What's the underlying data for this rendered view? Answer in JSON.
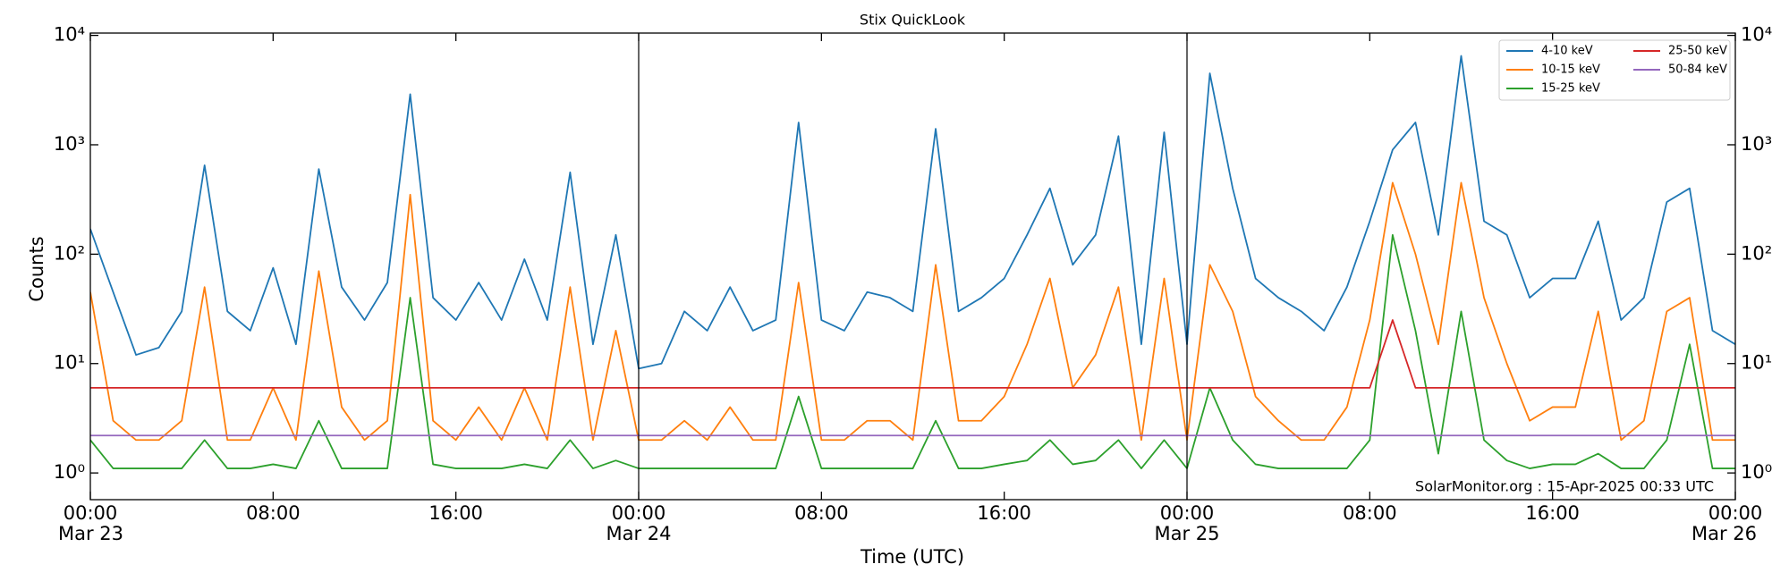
{
  "chart_data": {
    "type": "line",
    "title": "Stix QuickLook",
    "x_label": "Time (UTC)",
    "y_label": "Counts",
    "annotation": "SolarMonitor.org : 15-Apr-2025 00:33 UTC",
    "log_y": true,
    "legend": "upper right",
    "xlim": [
      "Mar 23 00:00",
      "Mar 26 00:00"
    ],
    "ylim": [
      0.57,
      10500
    ],
    "xticks": [
      {
        "value": "Mar 23 00:00",
        "label": "00:00",
        "sublabel": "Mar 23"
      },
      {
        "value": "Mar 23 08:00",
        "label": "08:00"
      },
      {
        "value": "Mar 23 16:00",
        "label": "16:00"
      },
      {
        "value": "Mar 24 00:00",
        "label": "00:00",
        "sublabel": "Mar 24"
      },
      {
        "value": "Mar 24 08:00",
        "label": "08:00"
      },
      {
        "value": "Mar 24 16:00",
        "label": "16:00"
      },
      {
        "value": "Mar 25 00:00",
        "label": "00:00",
        "sublabel": "Mar 25"
      },
      {
        "value": "Mar 25 08:00",
        "label": "08:00"
      },
      {
        "value": "Mar 25 16:00",
        "label": "16:00"
      },
      {
        "value": "Mar 26 00:00",
        "label": "00:00",
        "sublabel": "Mar 26"
      }
    ],
    "yticks": [
      {
        "value": 1,
        "label": "10⁰"
      },
      {
        "value": 10,
        "label": "10¹"
      },
      {
        "value": 100,
        "label": "10²"
      },
      {
        "value": 1000,
        "label": "10³"
      },
      {
        "value": 10000,
        "label": "10⁴"
      }
    ],
    "vlines": [
      "Mar 24 00:00",
      "Mar 25 00:00"
    ],
    "x": [
      "Mar 23 00:00",
      "Mar 23 01:00",
      "Mar 23 02:00",
      "Mar 23 03:00",
      "Mar 23 04:00",
      "Mar 23 05:00",
      "Mar 23 06:00",
      "Mar 23 07:00",
      "Mar 23 08:00",
      "Mar 23 09:00",
      "Mar 23 10:00",
      "Mar 23 11:00",
      "Mar 23 12:00",
      "Mar 23 13:00",
      "Mar 23 14:00",
      "Mar 23 15:00",
      "Mar 23 16:00",
      "Mar 23 17:00",
      "Mar 23 18:00",
      "Mar 23 19:00",
      "Mar 23 20:00",
      "Mar 23 21:00",
      "Mar 23 22:00",
      "Mar 23 23:00",
      "Mar 24 00:00",
      "Mar 24 01:00",
      "Mar 24 02:00",
      "Mar 24 03:00",
      "Mar 24 04:00",
      "Mar 24 05:00",
      "Mar 24 06:00",
      "Mar 24 07:00",
      "Mar 24 08:00",
      "Mar 24 09:00",
      "Mar 24 10:00",
      "Mar 24 11:00",
      "Mar 24 12:00",
      "Mar 24 13:00",
      "Mar 24 14:00",
      "Mar 24 15:00",
      "Mar 24 16:00",
      "Mar 24 17:00",
      "Mar 24 18:00",
      "Mar 24 19:00",
      "Mar 24 20:00",
      "Mar 24 21:00",
      "Mar 24 22:00",
      "Mar 24 23:00",
      "Mar 25 00:00",
      "Mar 25 01:00",
      "Mar 25 02:00",
      "Mar 25 03:00",
      "Mar 25 04:00",
      "Mar 25 05:00",
      "Mar 25 06:00",
      "Mar 25 07:00",
      "Mar 25 08:00",
      "Mar 25 09:00",
      "Mar 25 10:00",
      "Mar 25 11:00",
      "Mar 25 12:00",
      "Mar 25 13:00",
      "Mar 25 14:00",
      "Mar 25 15:00",
      "Mar 25 16:00",
      "Mar 25 17:00",
      "Mar 25 18:00",
      "Mar 25 19:00",
      "Mar 25 20:00",
      "Mar 25 21:00",
      "Mar 25 22:00",
      "Mar 25 23:00",
      "Mar 26 00:00"
    ],
    "series": [
      {
        "name": "4-10 keV",
        "color": "#1f77b4",
        "values": [
          170,
          45,
          12,
          14,
          30,
          650,
          30,
          20,
          75,
          15,
          600,
          50,
          25,
          55,
          2900,
          40,
          25,
          55,
          25,
          90,
          25,
          560,
          15,
          150,
          9,
          10,
          30,
          20,
          50,
          20,
          25,
          1600,
          25,
          20,
          45,
          40,
          30,
          1400,
          30,
          40,
          60,
          150,
          400,
          80,
          150,
          1200,
          15,
          1300,
          15,
          4500,
          400,
          60,
          40,
          30,
          20,
          50,
          200,
          900,
          1600,
          150,
          6500,
          200,
          150,
          40,
          60,
          60,
          200,
          25,
          40,
          300,
          400,
          20,
          15
        ]
      },
      {
        "name": "10-15 keV",
        "color": "#ff7f0e",
        "values": [
          45,
          3,
          2,
          2,
          3,
          50,
          2,
          2,
          6,
          2,
          70,
          4,
          2,
          3,
          350,
          3,
          2,
          4,
          2,
          6,
          2,
          50,
          2,
          20,
          2,
          2,
          3,
          2,
          4,
          2,
          2,
          55,
          2,
          2,
          3,
          3,
          2,
          80,
          3,
          3,
          5,
          15,
          60,
          6,
          12,
          50,
          2,
          60,
          2,
          80,
          30,
          5,
          3,
          2,
          2,
          4,
          25,
          450,
          100,
          15,
          450,
          40,
          10,
          3,
          4,
          4,
          30,
          2,
          3,
          30,
          40,
          2,
          2
        ]
      },
      {
        "name": "15-25 keV",
        "color": "#2ca02c",
        "values": [
          2,
          1.1,
          1.1,
          1.1,
          1.1,
          2,
          1.1,
          1.1,
          1.2,
          1.1,
          3,
          1.1,
          1.1,
          1.1,
          40,
          1.2,
          1.1,
          1.1,
          1.1,
          1.2,
          1.1,
          2,
          1.1,
          1.3,
          1.1,
          1.1,
          1.1,
          1.1,
          1.1,
          1.1,
          1.1,
          5,
          1.1,
          1.1,
          1.1,
          1.1,
          1.1,
          3,
          1.1,
          1.1,
          1.2,
          1.3,
          2,
          1.2,
          1.3,
          2,
          1.1,
          2,
          1.1,
          6,
          2,
          1.2,
          1.1,
          1.1,
          1.1,
          1.1,
          2,
          150,
          20,
          1.5,
          30,
          2,
          1.3,
          1.1,
          1.2,
          1.2,
          1.5,
          1.1,
          1.1,
          2,
          15,
          1.1,
          1.1
        ]
      },
      {
        "name": "25-50 keV",
        "color": "#d62728",
        "values": [
          6,
          6,
          6,
          6,
          6,
          6,
          6,
          6,
          6,
          6,
          6,
          6,
          6,
          6,
          6,
          6,
          6,
          6,
          6,
          6,
          6,
          6,
          6,
          6,
          6,
          6,
          6,
          6,
          6,
          6,
          6,
          6,
          6,
          6,
          6,
          6,
          6,
          6,
          6,
          6,
          6,
          6,
          6,
          6,
          6,
          6,
          6,
          6,
          6,
          6,
          6,
          6,
          6,
          6,
          6,
          6,
          6,
          25,
          6,
          6,
          6,
          6,
          6,
          6,
          6,
          6,
          6,
          6,
          6,
          6,
          6,
          6,
          6
        ]
      },
      {
        "name": "50-84 keV",
        "color": "#9467bd",
        "values": [
          2.2,
          2.2,
          2.2,
          2.2,
          2.2,
          2.2,
          2.2,
          2.2,
          2.2,
          2.2,
          2.2,
          2.2,
          2.2,
          2.2,
          2.2,
          2.2,
          2.2,
          2.2,
          2.2,
          2.2,
          2.2,
          2.2,
          2.2,
          2.2,
          2.2,
          2.2,
          2.2,
          2.2,
          2.2,
          2.2,
          2.2,
          2.2,
          2.2,
          2.2,
          2.2,
          2.2,
          2.2,
          2.2,
          2.2,
          2.2,
          2.2,
          2.2,
          2.2,
          2.2,
          2.2,
          2.2,
          2.2,
          2.2,
          2.2,
          2.2,
          2.2,
          2.2,
          2.2,
          2.2,
          2.2,
          2.2,
          2.2,
          2.2,
          2.2,
          2.2,
          2.2,
          2.2,
          2.2,
          2.2,
          2.2,
          2.2,
          2.2,
          2.2,
          2.2,
          2.2,
          2.2,
          2.2,
          2.2
        ]
      }
    ]
  }
}
